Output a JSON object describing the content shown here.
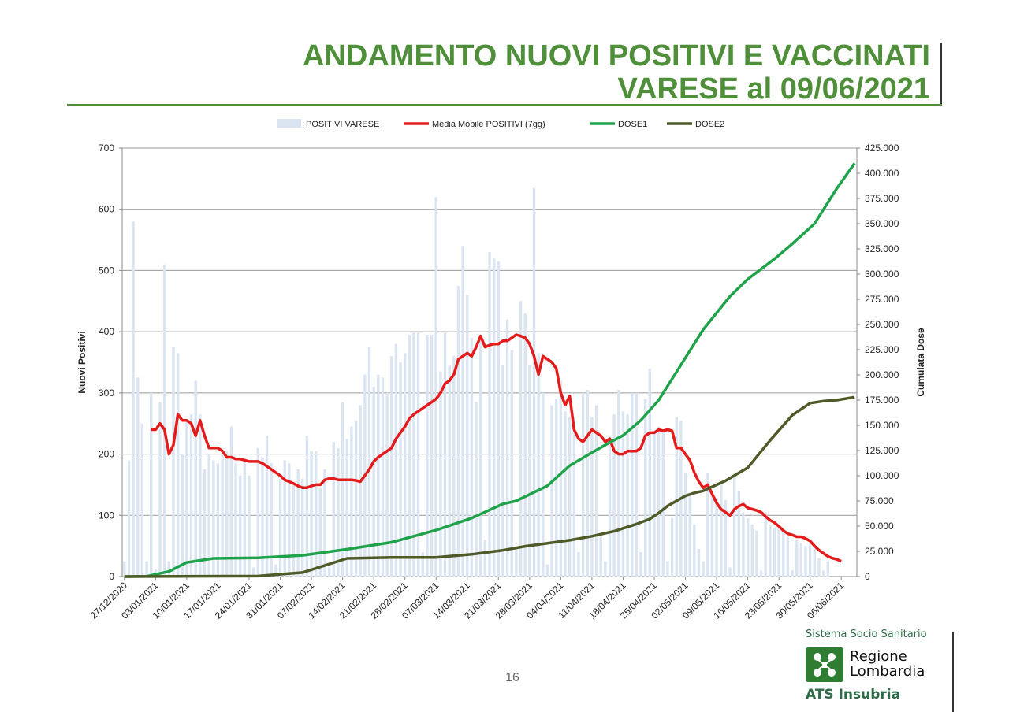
{
  "slide": {
    "title_line1": "ANDAMENTO NUOVI POSITIVI E VACCINATI",
    "title_line2": "VARESE al 09/06/2021",
    "page_number": "16"
  },
  "logo": {
    "system": "Sistema Socio Sanitario",
    "region_line1": "Regione",
    "region_line2": "Lombardia",
    "agency": "ATS Insubria"
  },
  "colors": {
    "title": "#4f8f3a",
    "bars": "#dbe5f1",
    "moving_average": "#e31b1b",
    "dose1": "#1fa24a",
    "dose2": "#4e5a28"
  },
  "chart_data": {
    "type": "bar",
    "title": "",
    "xlabel": "",
    "ylabel": "Nuovi Positivi",
    "y2label": "Cumulata Dose",
    "ylim": [
      0,
      700
    ],
    "y2lim": [
      0,
      425000
    ],
    "yticks": [
      "0",
      "100",
      "200",
      "300",
      "400",
      "500",
      "600",
      "700"
    ],
    "y2ticks": [
      "0",
      "25.000",
      "50.000",
      "75.000",
      "100.000",
      "125.000",
      "150.000",
      "175.000",
      "200.000",
      "225.000",
      "250.000",
      "275.000",
      "300.000",
      "325.000",
      "350.000",
      "375.000",
      "400.000",
      "425.000"
    ],
    "x_start": "2020-12-27",
    "x_days": 165,
    "x_tick_labels": [
      "27/12/2020",
      "03/01/2021",
      "10/01/2021",
      "17/01/2021",
      "24/01/2021",
      "31/01/2021",
      "07/02/2021",
      "14/02/2021",
      "21/02/2021",
      "28/02/2021",
      "07/03/2021",
      "14/03/2021",
      "21/03/2021",
      "28/03/2021",
      "04/04/2021",
      "11/04/2021",
      "18/04/2021",
      "25/04/2021",
      "02/05/2021",
      "09/05/2021",
      "16/05/2021",
      "23/05/2021",
      "30/05/2021",
      "06/06/2021"
    ],
    "grid": true,
    "legend_position": "top-center",
    "legend": [
      "POSITIVI VARESE",
      "Media Mobile POSITIVI (7gg)",
      "DOSE1",
      "DOSE2"
    ],
    "bars": {
      "name": "POSITIVI VARESE",
      "values": [
        25,
        190,
        580,
        325,
        250,
        25,
        300,
        12,
        285,
        510,
        25,
        375,
        365,
        200,
        255,
        265,
        320,
        265,
        175,
        200,
        190,
        185,
        210,
        205,
        245,
        185,
        165,
        190,
        165,
        15,
        210,
        195,
        230,
        185,
        20,
        160,
        190,
        185,
        150,
        175,
        160,
        230,
        205,
        205,
        145,
        175,
        15,
        220,
        210,
        285,
        225,
        245,
        255,
        280,
        330,
        375,
        310,
        330,
        325,
        300,
        360,
        380,
        350,
        365,
        395,
        400,
        400,
        40,
        395,
        395,
        620,
        335,
        400,
        345,
        360,
        475,
        540,
        460,
        390,
        285,
        395,
        60,
        530,
        520,
        515,
        345,
        420,
        370,
        50,
        450,
        430,
        345,
        635,
        365,
        300,
        20,
        280,
        290,
        320,
        270,
        260,
        260,
        40,
        300,
        305,
        260,
        280,
        65,
        25,
        230,
        265,
        305,
        270,
        265,
        300,
        300,
        40,
        290,
        340,
        235,
        245,
        238,
        25,
        95,
        260,
        255,
        170,
        135,
        85,
        45,
        25,
        170,
        140,
        130,
        155,
        125,
        15,
        165,
        140,
        105,
        95,
        85,
        75,
        10,
        105,
        85,
        80,
        80,
        75,
        65,
        10,
        60,
        55,
        50,
        55,
        50,
        30,
        10,
        25
      ],
      "first_day": 0
    },
    "series": [
      {
        "name": "Media Mobile POSITIVI (7gg)",
        "axis": "left",
        "first_day": 6,
        "values": [
          240,
          240,
          250,
          240,
          200,
          215,
          265,
          255,
          255,
          250,
          230,
          255,
          230,
          210,
          210,
          210,
          205,
          195,
          195,
          192,
          192,
          190,
          188,
          188,
          188,
          185,
          180,
          175,
          170,
          165,
          158,
          155,
          152,
          148,
          145,
          145,
          148,
          150,
          150,
          158,
          160,
          160,
          158,
          158,
          158,
          158,
          157,
          155,
          165,
          175,
          188,
          195,
          200,
          205,
          210,
          225,
          235,
          245,
          258,
          265,
          270,
          275,
          280,
          285,
          290,
          300,
          315,
          320,
          330,
          355,
          360,
          365,
          360,
          375,
          393,
          375,
          378,
          380,
          380,
          385,
          385,
          390,
          395,
          393,
          390,
          380,
          360,
          330,
          360,
          355,
          350,
          340,
          300,
          280,
          295,
          240,
          225,
          220,
          230,
          240,
          235,
          230,
          220,
          225,
          205,
          200,
          200,
          205,
          205,
          205,
          210,
          230,
          235,
          235,
          240,
          238,
          240,
          238,
          210,
          210,
          200,
          190,
          170,
          155,
          145,
          150,
          135,
          120,
          110,
          105,
          100,
          110,
          115,
          118,
          112,
          110,
          108,
          105,
          98,
          92,
          88,
          82,
          75,
          70,
          68,
          65,
          65,
          62,
          58,
          50,
          43,
          38,
          33,
          30,
          28,
          25
        ],
        "color": "#e31b1b"
      },
      {
        "name": "DOSE1",
        "axis": "right",
        "x": [
          0,
          5,
          10,
          14,
          20,
          30,
          40,
          50,
          60,
          70,
          78,
          85,
          88,
          95,
          100,
          105,
          109,
          112,
          116,
          120,
          125,
          130,
          136,
          140,
          146,
          150,
          155,
          160,
          164
        ],
        "values": [
          0,
          200,
          5000,
          14000,
          18000,
          18500,
          21000,
          27000,
          34000,
          46000,
          58000,
          72000,
          75000,
          90000,
          110000,
          123000,
          133000,
          140000,
          155000,
          175000,
          210000,
          245000,
          278000,
          295000,
          315000,
          330000,
          350000,
          385000,
          410000
        ],
        "color": "#1fa24a"
      },
      {
        "name": "DOSE2",
        "axis": "right",
        "x": [
          0,
          30,
          40,
          50,
          60,
          70,
          78,
          85,
          90,
          100,
          105,
          110,
          115,
          118,
          120,
          122,
          126,
          128,
          130,
          135,
          140,
          145,
          150,
          154,
          157,
          160,
          164
        ],
        "values": [
          0,
          500,
          4000,
          18000,
          19000,
          19000,
          22000,
          26000,
          30000,
          36000,
          40000,
          45000,
          52000,
          57000,
          63000,
          70000,
          80000,
          83000,
          85000,
          95000,
          108000,
          135000,
          160000,
          172000,
          174000,
          175000,
          178000
        ],
        "color": "#4e5a28"
      }
    ]
  }
}
